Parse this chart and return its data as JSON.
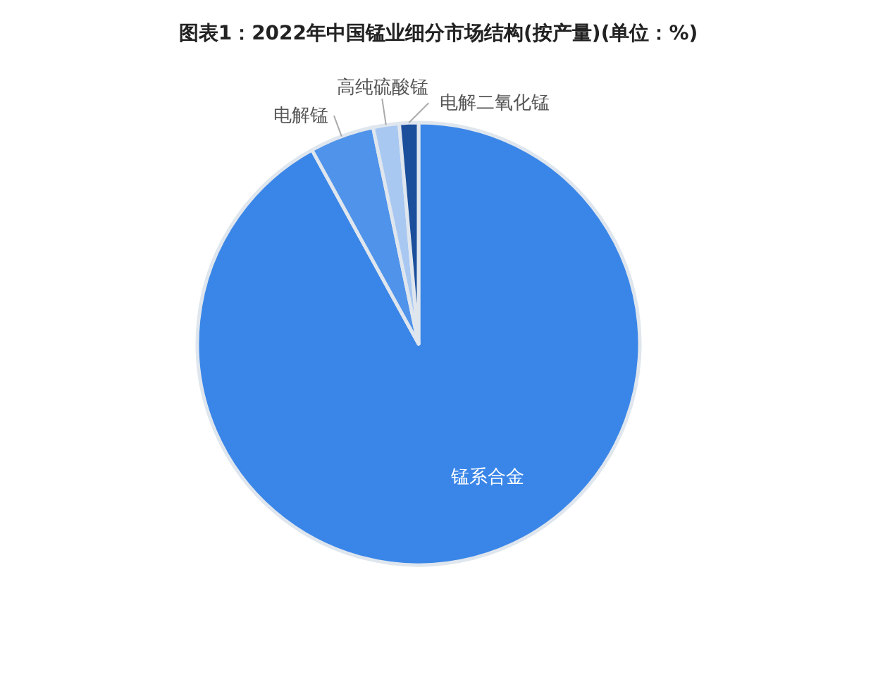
{
  "chart_data": {
    "type": "pie",
    "title": "图表1：2022年中国锰业细分市场结构(按产量)(单位：%)",
    "categories": [
      "锰系合金",
      "电解锰",
      "高纯硫酸锰",
      "电解二氧化锰"
    ],
    "values": [
      92.0,
      4.7,
      1.9,
      1.4
    ],
    "colors": [
      "#3a86e8",
      "#4f93ea",
      "#a8c8f2",
      "#1b4f9c"
    ],
    "legend": false
  }
}
